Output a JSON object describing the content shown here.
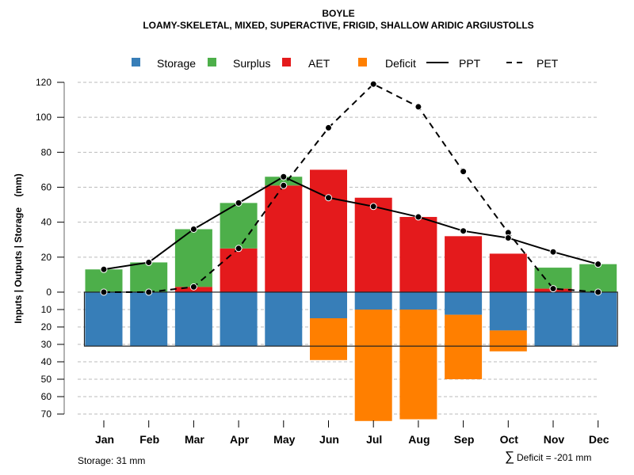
{
  "chart_data": {
    "type": "bar",
    "title": "BOYLE",
    "subtitle": "LOAMY-SKELETAL, MIXED, SUPERACTIVE, FRIGID, SHALLOW ARIDIC ARGIUSTOLLS",
    "xlabel": "",
    "ylabel": "Inputs | Outputs | Storage    (mm)",
    "categories": [
      "Jan",
      "Feb",
      "Mar",
      "Apr",
      "May",
      "Jun",
      "Jul",
      "Aug",
      "Sep",
      "Oct",
      "Nov",
      "Dec"
    ],
    "ylim_positive": [
      0,
      120
    ],
    "ylim_negative": [
      0,
      70
    ],
    "yticks_positive": [
      0,
      20,
      40,
      60,
      80,
      100,
      120
    ],
    "yticks_negative": [
      10,
      20,
      30,
      40,
      50,
      60,
      70
    ],
    "grid": true,
    "legend_position": "top",
    "legend": [
      {
        "name": "Storage",
        "type": "box",
        "color": "#377EB8"
      },
      {
        "name": "Surplus",
        "type": "box",
        "color": "#4DAF4A"
      },
      {
        "name": "AET",
        "type": "box",
        "color": "#E41A1C"
      },
      {
        "name": "Deficit",
        "type": "box",
        "color": "#FF7F00"
      },
      {
        "name": "PPT",
        "type": "solid-line",
        "color": "#000000"
      },
      {
        "name": "PET",
        "type": "dashed-line",
        "color": "#000000"
      }
    ],
    "series": [
      {
        "name": "AET",
        "direction": "up",
        "values": [
          0,
          0,
          3,
          25,
          61,
          70,
          54,
          43,
          32,
          22,
          2,
          0
        ]
      },
      {
        "name": "Surplus",
        "direction": "up",
        "values": [
          13,
          17,
          33,
          26,
          5,
          0,
          0,
          0,
          0,
          0,
          12,
          16
        ]
      },
      {
        "name": "Storage",
        "direction": "down",
        "values": [
          31,
          31,
          31,
          31,
          31,
          15,
          10,
          10,
          13,
          22,
          31,
          31
        ]
      },
      {
        "name": "Deficit",
        "direction": "down",
        "values": [
          0,
          0,
          0,
          0,
          0,
          24,
          64,
          63,
          37,
          12,
          0,
          0
        ]
      },
      {
        "name": "PPT",
        "type": "line",
        "values": [
          13,
          17,
          36,
          51,
          66,
          54,
          49,
          43,
          35,
          31,
          23,
          16
        ]
      },
      {
        "name": "PET",
        "type": "line",
        "values": [
          0,
          0,
          3,
          25,
          61,
          94,
          119,
          106,
          69,
          34,
          2,
          0
        ]
      }
    ],
    "storage_capacity": 31,
    "annotations": {
      "storage_note": "Storage: 31 mm",
      "deficit_note": "Deficit = -201 mm",
      "deficit_symbol": "∑"
    }
  }
}
